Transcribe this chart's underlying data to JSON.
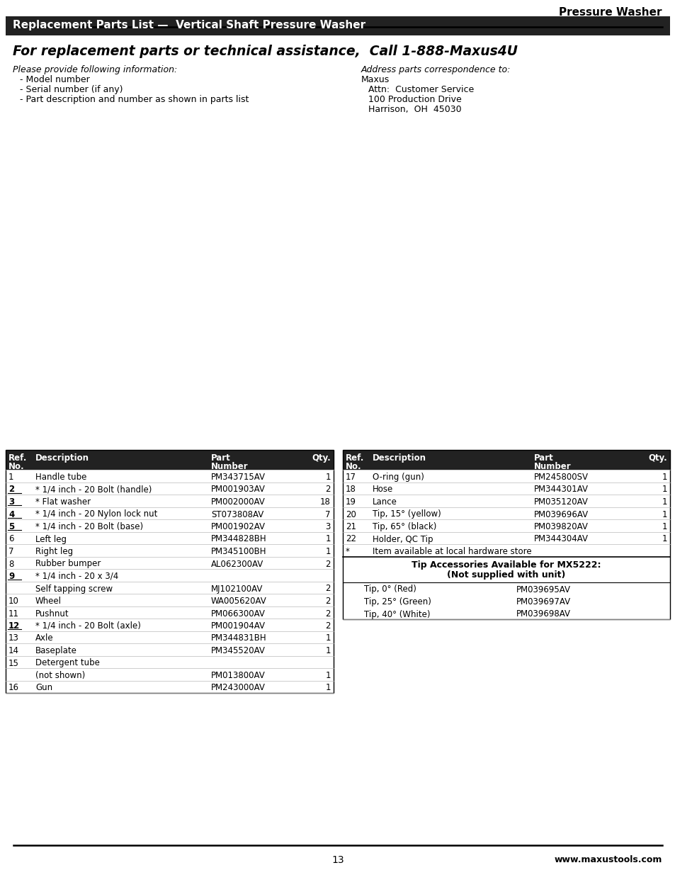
{
  "page_title": "Pressure Washer",
  "section_title": "Replacement Parts List —  Vertical Shaft Pressure Washer",
  "call_line": "For replacement parts or technical assistance,  Call 1-888-Maxus4U",
  "left_info_title": "Please provide following information:",
  "left_info_items": [
    "- Model number",
    "- Serial number (if any)",
    "- Part description and number as shown in parts list"
  ],
  "right_info_title": "Address parts correspondence to:",
  "right_info_items": [
    "Maxus",
    "Attn:  Customer Service",
    "100 Production Drive",
    "Harrison,  OH  45030"
  ],
  "table_left_rows": [
    [
      "1",
      "Handle tube",
      "PM343715AV",
      "1"
    ],
    [
      "2",
      "* 1/4 inch - 20 Bolt (handle)",
      "PM001903AV",
      "2"
    ],
    [
      "3",
      "* Flat washer",
      "PM002000AV",
      "18"
    ],
    [
      "4",
      "* 1/4 inch - 20 Nylon lock nut",
      "ST073808AV",
      "7"
    ],
    [
      "5",
      "* 1/4 inch - 20 Bolt (base)",
      "PM001902AV",
      "3"
    ],
    [
      "6",
      "Left leg",
      "PM344828BH",
      "1"
    ],
    [
      "7",
      "Right leg",
      "PM345100BH",
      "1"
    ],
    [
      "8",
      "Rubber bumper",
      "AL062300AV",
      "2"
    ],
    [
      "9",
      "* 1/4 inch - 20 x 3/4",
      "",
      ""
    ],
    [
      "",
      "Self tapping screw",
      "MJ102100AV",
      "2"
    ],
    [
      "10",
      "Wheel",
      "WA005620AV",
      "2"
    ],
    [
      "11",
      "Pushnut",
      "PM066300AV",
      "2"
    ],
    [
      "12",
      "* 1/4 inch - 20 Bolt (axle)",
      "PM001904AV",
      "2"
    ],
    [
      "13",
      "Axle",
      "PM344831BH",
      "1"
    ],
    [
      "14",
      "Baseplate",
      "PM345520AV",
      "1"
    ],
    [
      "15",
      "Detergent tube",
      "",
      ""
    ],
    [
      "",
      "(not shown)",
      "PM013800AV",
      "1"
    ],
    [
      "16",
      "Gun",
      "PM243000AV",
      "1"
    ]
  ],
  "table_right_rows": [
    [
      "17",
      "O-ring (gun)",
      "PM245800SV",
      "1"
    ],
    [
      "18",
      "Hose",
      "PM344301AV",
      "1"
    ],
    [
      "19",
      "Lance",
      "PM035120AV",
      "1"
    ],
    [
      "20",
      "Tip, 15° (yellow)",
      "PM039696AV",
      "1"
    ],
    [
      "21",
      "Tip, 65° (black)",
      "PM039820AV",
      "1"
    ],
    [
      "22",
      "Holder, QC Tip",
      "PM344304AV",
      "1"
    ],
    [
      "*",
      "Item available at local hardware store",
      "",
      ""
    ]
  ],
  "tip_accessories_title": "Tip Accessories Available for MX5222:",
  "tip_accessories_subtitle": "(Not supplied with unit)",
  "tip_accessories_rows": [
    [
      "Tip, 0° (Red)",
      "PM039695AV"
    ],
    [
      "Tip, 25° (Green)",
      "PM039697AV"
    ],
    [
      "Tip, 40° (White)",
      "PM039698AV"
    ]
  ],
  "bold_ref_nos": [
    "2",
    "3",
    "4",
    "5",
    "9",
    "12"
  ],
  "page_number": "13",
  "website": "www.maxustools.com",
  "bg_color": "#ffffff",
  "header_bg": "#222222",
  "table_header_bg": "#222222"
}
